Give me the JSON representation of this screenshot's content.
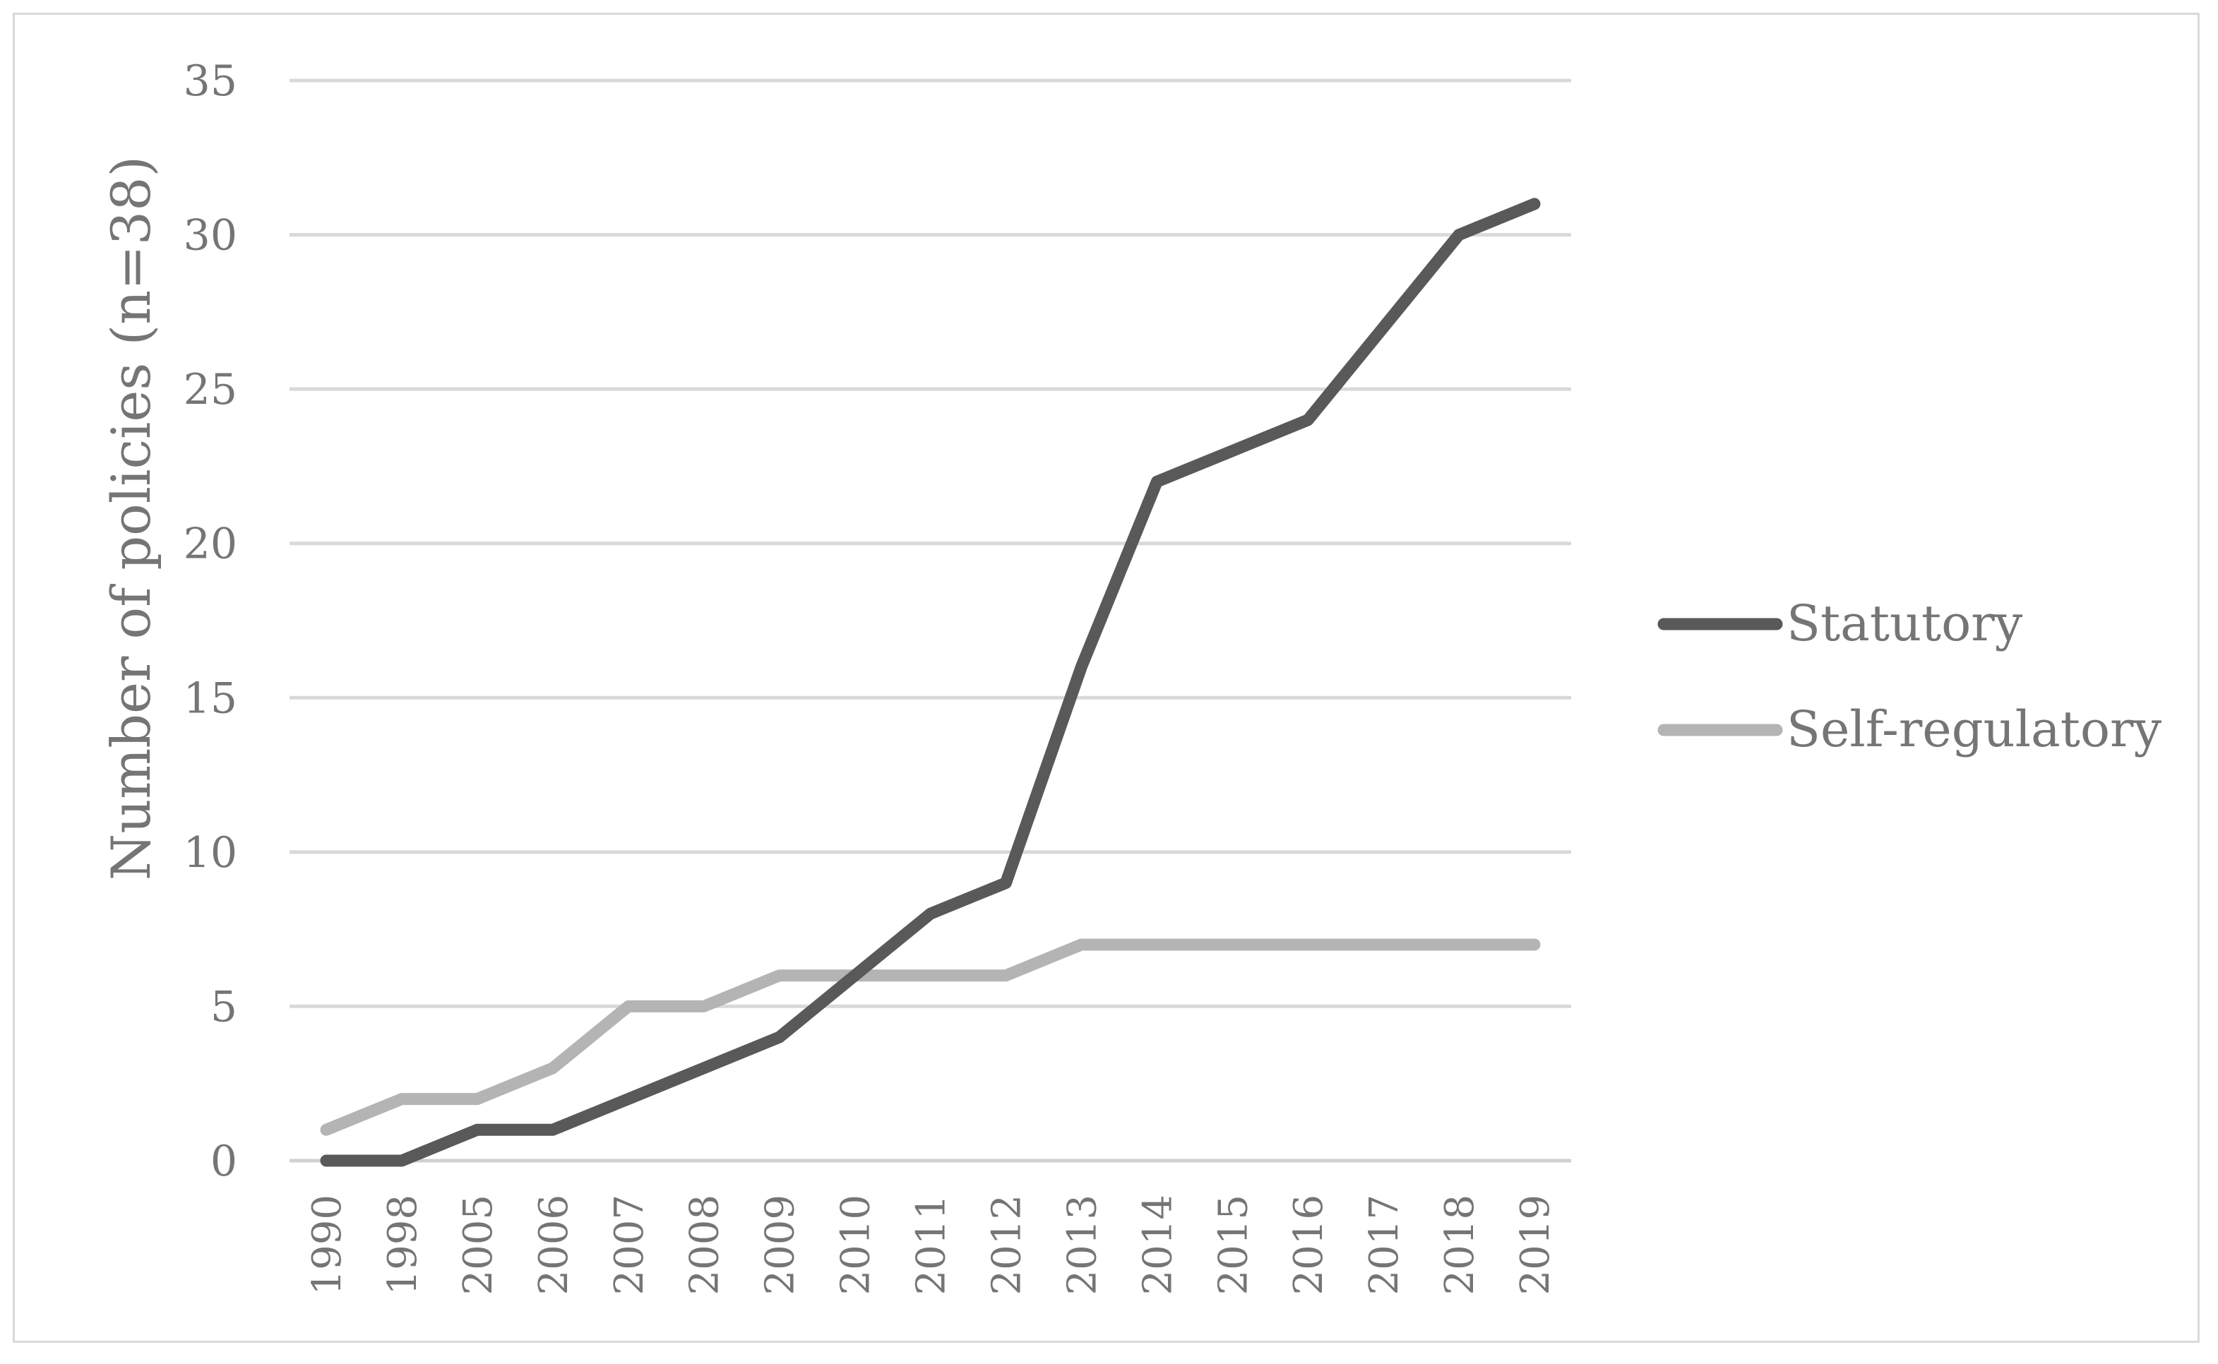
{
  "chart_data": {
    "type": "line",
    "title": "",
    "xlabel": "",
    "ylabel": "Number of policies (n=38)",
    "ylim": [
      0,
      35
    ],
    "yticks": [
      0,
      5,
      10,
      15,
      20,
      25,
      30,
      35
    ],
    "grid": true,
    "legend_position": "right",
    "categories": [
      "1990",
      "1998",
      "2005",
      "2006",
      "2007",
      "2008",
      "2009",
      "2010",
      "2011",
      "2012",
      "2013",
      "2014",
      "2015",
      "2016",
      "2017",
      "2018",
      "2019"
    ],
    "series": [
      {
        "name": "Statutory",
        "color": "#595959",
        "values": [
          0,
          0,
          1,
          1,
          2,
          3,
          4,
          6,
          8,
          9,
          16,
          22,
          23,
          24,
          27,
          30,
          31
        ]
      },
      {
        "name": "Self-regulatory",
        "color": "#b4b4b4",
        "values": [
          1,
          2,
          2,
          3,
          5,
          5,
          6,
          6,
          6,
          6,
          7,
          7,
          7,
          7,
          7,
          7,
          7
        ]
      }
    ]
  }
}
